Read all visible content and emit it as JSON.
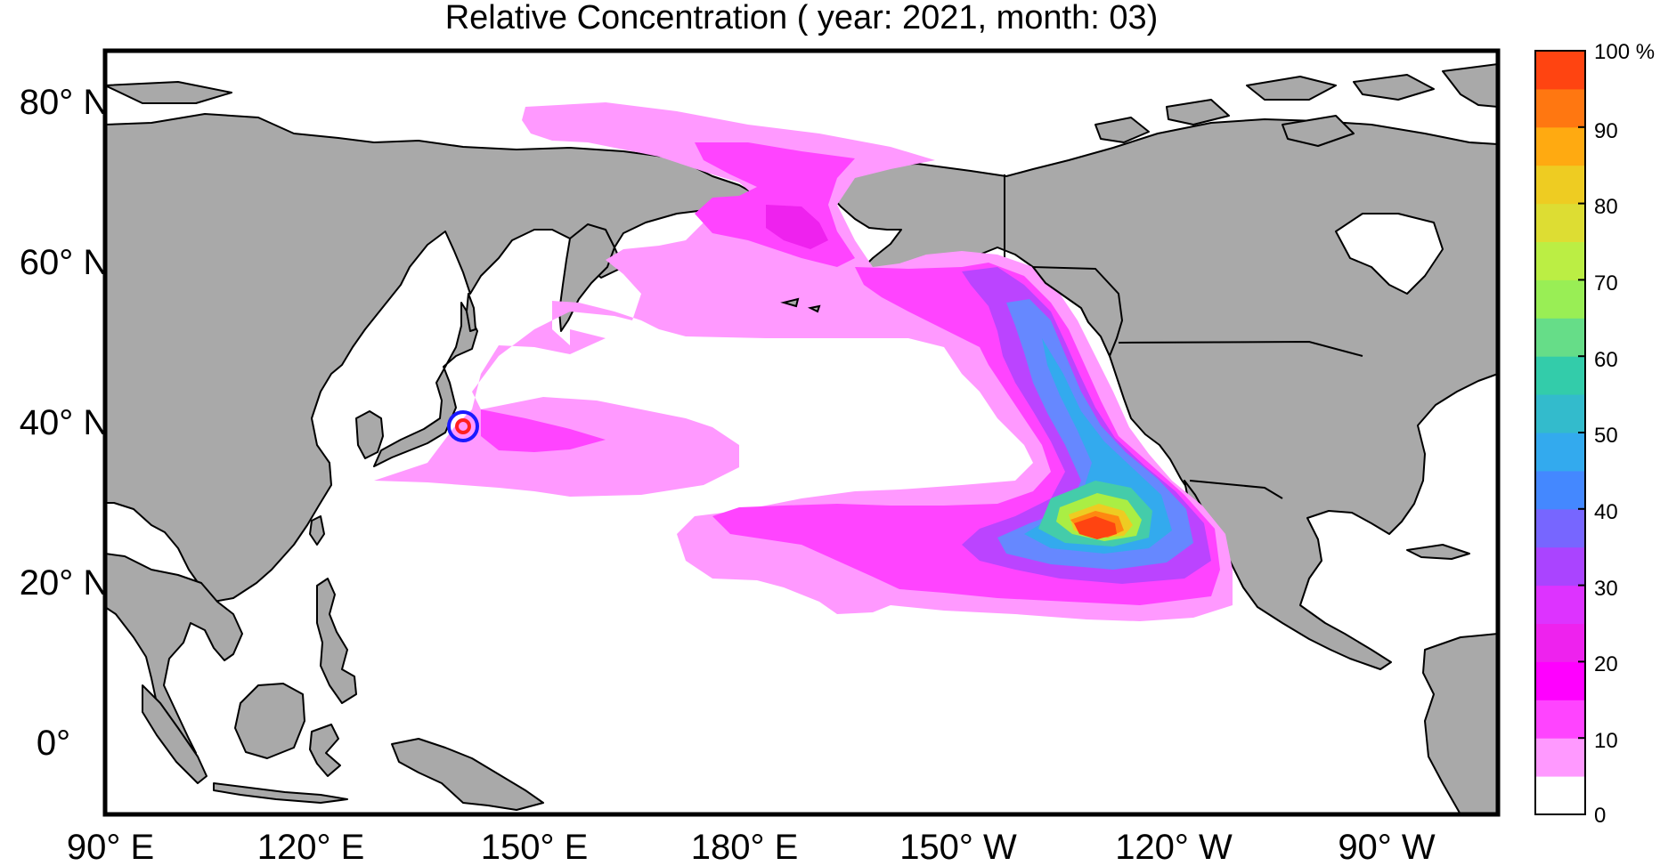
{
  "title": "Relative Concentration ( year: 2021, month: 03)",
  "map": {
    "projection": "equirectangular",
    "lon_range": [
      "90 E",
      "100 W"
    ],
    "lat_range": [
      "10 S",
      "85 N"
    ],
    "land_color": "#a9a9a9",
    "ocean_color": "#ffffff",
    "source_marker": {
      "label": "release-point",
      "lat": 39,
      "lon": 141,
      "outer_color": "#1a1aff",
      "inner_color": "#ff2020"
    },
    "plume_colors": [
      "#ff99ff",
      "#ff44ff",
      "#ee22ee",
      "#dd33ff",
      "#aa55ff",
      "#7777ff",
      "#4499ee",
      "#33bbdd",
      "#55ddaa",
      "#99ee55",
      "#ccee44",
      "#eecc22",
      "#ffaa11",
      "#ff7711",
      "#ff4411"
    ]
  },
  "axes": {
    "y_ticks": [
      "80° N",
      "60° N",
      "40° N",
      "20° N",
      "0°"
    ],
    "x_ticks": [
      "90° E",
      "120° E",
      "150° E",
      "180° E",
      "150° W",
      "120° W",
      "90° W"
    ]
  },
  "colorbar": {
    "unit": "%",
    "ticks": [
      "100 %",
      "90",
      "80",
      "70",
      "60",
      "50",
      "40",
      "30",
      "20",
      "10",
      "0"
    ],
    "levels": [
      {
        "from": 0,
        "to": 5,
        "color": "#ffffff"
      },
      {
        "from": 5,
        "to": 10,
        "color": "#ff99ff"
      },
      {
        "from": 10,
        "to": 15,
        "color": "#ff44ff"
      },
      {
        "from": 15,
        "to": 20,
        "color": "#ff00ff"
      },
      {
        "from": 20,
        "to": 25,
        "color": "#ee22ee"
      },
      {
        "from": 25,
        "to": 30,
        "color": "#dd33ff"
      },
      {
        "from": 30,
        "to": 35,
        "color": "#aa44ff"
      },
      {
        "from": 35,
        "to": 40,
        "color": "#7766ff"
      },
      {
        "from": 40,
        "to": 45,
        "color": "#4488ff"
      },
      {
        "from": 45,
        "to": 50,
        "color": "#33aaee"
      },
      {
        "from": 50,
        "to": 55,
        "color": "#33bbcc"
      },
      {
        "from": 55,
        "to": 60,
        "color": "#33ccaa"
      },
      {
        "from": 60,
        "to": 65,
        "color": "#66dd88"
      },
      {
        "from": 65,
        "to": 70,
        "color": "#99ee55"
      },
      {
        "from": 70,
        "to": 75,
        "color": "#bbee44"
      },
      {
        "from": 75,
        "to": 80,
        "color": "#dddd33"
      },
      {
        "from": 80,
        "to": 85,
        "color": "#eecc22"
      },
      {
        "from": 85,
        "to": 90,
        "color": "#ffaa11"
      },
      {
        "from": 90,
        "to": 95,
        "color": "#ff7711"
      },
      {
        "from": 95,
        "to": 100,
        "color": "#ff4411"
      }
    ]
  }
}
